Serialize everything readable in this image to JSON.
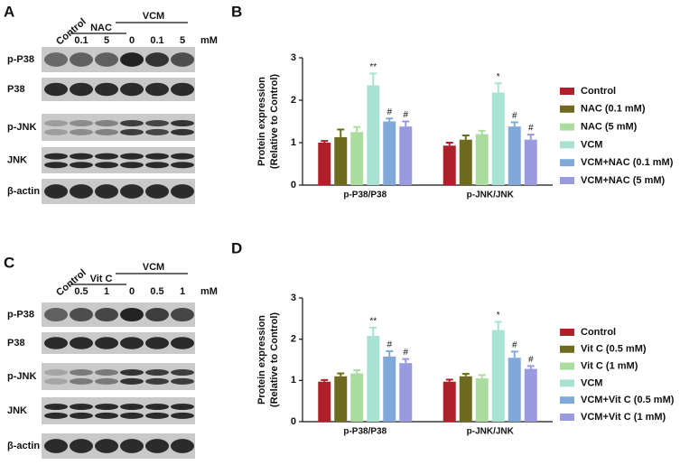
{
  "blots": [
    {
      "panel_label": "A",
      "control": "Control",
      "outer": "VCM",
      "inner": "NAC",
      "lanes": [
        "0.1",
        "5",
        "0",
        "0.1",
        "5"
      ],
      "unit": "mM",
      "rows": [
        "p-P38",
        "P38",
        "p-JNK",
        "JNK",
        "β-actin"
      ]
    },
    {
      "panel_label": "C",
      "control": "Control",
      "outer": "VCM",
      "inner": "Vit C",
      "lanes": [
        "0.5",
        "1",
        "0",
        "0.5",
        "1"
      ],
      "unit": "mM",
      "rows": [
        "p-P38",
        "P38",
        "p-JNK",
        "JNK",
        "β-actin"
      ]
    }
  ],
  "chart_data": [
    {
      "type": "bar",
      "panel_label": "B",
      "ylabel": [
        "Protein expression",
        "(Relative to Control)"
      ],
      "categories": [
        "p-P38/P38",
        "p-JNK/JNK"
      ],
      "ylim": [
        0,
        3
      ],
      "yticks": [
        0,
        1,
        2,
        3
      ],
      "series": [
        {
          "name": "Control",
          "color": "#b0202a",
          "values": [
            1.0,
            0.93
          ],
          "errors": [
            0.04,
            0.07
          ],
          "annotations": [
            null,
            null
          ]
        },
        {
          "name": "NAC (0.1 mM)",
          "color": "#6e6b1f",
          "values": [
            1.13,
            1.07
          ],
          "errors": [
            0.18,
            0.1
          ],
          "annotations": [
            null,
            null
          ]
        },
        {
          "name": "NAC (5 mM)",
          "color": "#a9dc9d",
          "values": [
            1.25,
            1.2
          ],
          "errors": [
            0.12,
            0.08
          ],
          "annotations": [
            null,
            null
          ]
        },
        {
          "name": "VCM",
          "color": "#a8e2d2",
          "values": [
            2.35,
            2.18
          ],
          "errors": [
            0.28,
            0.22
          ],
          "annotations": [
            "**",
            "*"
          ]
        },
        {
          "name": "VCM+NAC (0.1 mM)",
          "color": "#80a9d9",
          "values": [
            1.5,
            1.38
          ],
          "errors": [
            0.07,
            0.1
          ],
          "annotations": [
            "#",
            "#"
          ]
        },
        {
          "name": "VCM+NAC (5 mM)",
          "color": "#9a9ade",
          "values": [
            1.38,
            1.07
          ],
          "errors": [
            0.12,
            0.12
          ],
          "annotations": [
            "#",
            "#"
          ]
        }
      ]
    },
    {
      "type": "bar",
      "panel_label": "D",
      "ylabel": [
        "Protein expression",
        "(Relative to Control)"
      ],
      "categories": [
        "p-P38/P38",
        "p-JNK/JNK"
      ],
      "ylim": [
        0,
        3
      ],
      "yticks": [
        0,
        1,
        2,
        3
      ],
      "series": [
        {
          "name": "Control",
          "color": "#b0202a",
          "values": [
            0.97,
            0.97
          ],
          "errors": [
            0.04,
            0.05
          ],
          "annotations": [
            null,
            null
          ]
        },
        {
          "name": "Vit C (0.5 mM)",
          "color": "#6e6b1f",
          "values": [
            1.1,
            1.1
          ],
          "errors": [
            0.07,
            0.06
          ],
          "annotations": [
            null,
            null
          ]
        },
        {
          "name": "Vit C (1 mM)",
          "color": "#a9dc9d",
          "values": [
            1.17,
            1.05
          ],
          "errors": [
            0.08,
            0.08
          ],
          "annotations": [
            null,
            null
          ]
        },
        {
          "name": "VCM",
          "color": "#a8e2d2",
          "values": [
            2.08,
            2.22
          ],
          "errors": [
            0.2,
            0.2
          ],
          "annotations": [
            "**",
            "*"
          ]
        },
        {
          "name": "VCM+Vit C (0.5 mM)",
          "color": "#80a9d9",
          "values": [
            1.58,
            1.55
          ],
          "errors": [
            0.13,
            0.15
          ],
          "annotations": [
            "#",
            "#"
          ]
        },
        {
          "name": "VCM+Vit C (1 mM)",
          "color": "#9a9ade",
          "values": [
            1.42,
            1.28
          ],
          "errors": [
            0.1,
            0.07
          ],
          "annotations": [
            "#",
            "#"
          ]
        }
      ]
    }
  ]
}
